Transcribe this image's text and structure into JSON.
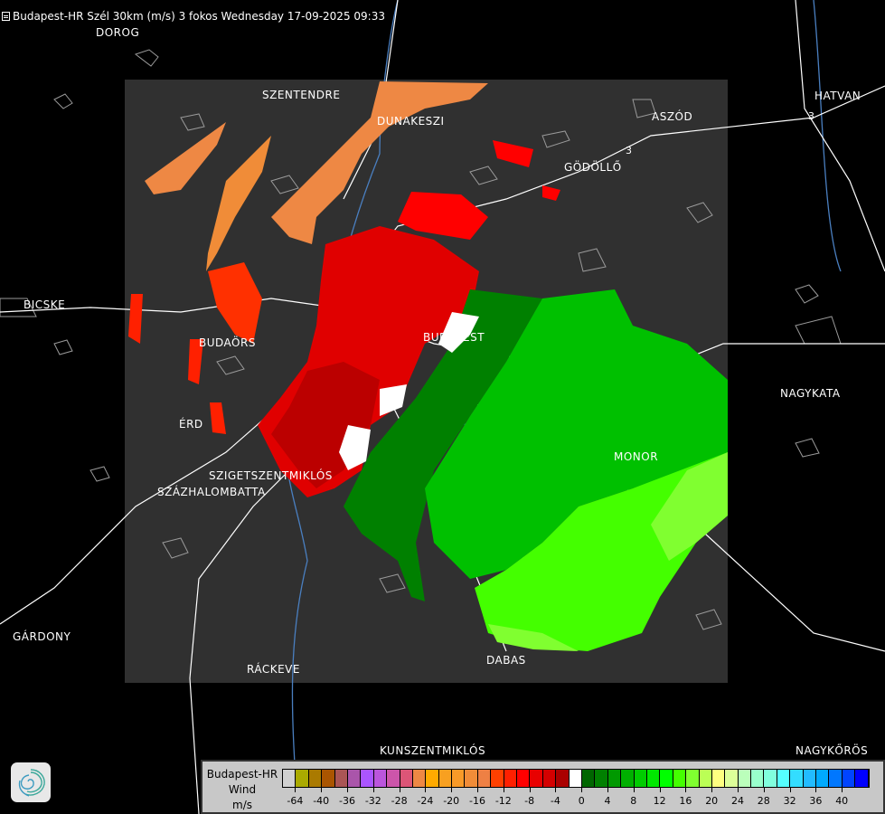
{
  "title": "Budapest-HR Szél 30km (m/s) 3 fokos Wednesday 17-09-2025 09:33",
  "title_icon": "document-icon",
  "cities": [
    {
      "name": "DOROG"
    },
    {
      "name": "SZENTENDRE"
    },
    {
      "name": "DUNAKESZI"
    },
    {
      "name": "GÖDÖLLŐ"
    },
    {
      "name": "ASZÓD"
    },
    {
      "name": "HATVAN"
    },
    {
      "name": "BICSKE"
    },
    {
      "name": "BUDAÖRS"
    },
    {
      "name": "BUDAPEST"
    },
    {
      "name": "NAGYKATA"
    },
    {
      "name": "ÉRD"
    },
    {
      "name": "MONOR"
    },
    {
      "name": "SZIGETSZENTMIKLÓS"
    },
    {
      "name": "SZÁZHALOMBATTA"
    },
    {
      "name": "GÁRDONY"
    },
    {
      "name": "RÁCKEVE"
    },
    {
      "name": "DABAS"
    },
    {
      "name": "KUNSZENTMIKLÓS"
    },
    {
      "name": "NAGYKŐRÖS"
    }
  ],
  "road_numbers": [
    "3",
    "3"
  ],
  "legend": {
    "line1": "Budapest-HR",
    "line2": "Wind",
    "line3": "m/s",
    "colors": [
      "#d0d0d0",
      "#aaaa00",
      "#aa7a00",
      "#aa5500",
      "#aa5555",
      "#aa55aa",
      "#aa55ff",
      "#bb55dd",
      "#cc55aa",
      "#dd5577",
      "#ee8844",
      "#ffaa00",
      "#f8a020",
      "#f89a28",
      "#f08c38",
      "#ee8044",
      "#ff4000",
      "#ff2000",
      "#ff0000",
      "#e80000",
      "#d40000",
      "#aa0000",
      "#ffffff",
      "#006600",
      "#008000",
      "#009900",
      "#00b000",
      "#00cc00",
      "#00e800",
      "#00ff00",
      "#44ff00",
      "#80ff30",
      "#bbff55",
      "#ffff80",
      "#ddff99",
      "#bbffbb",
      "#99ffcc",
      "#80ffdd",
      "#55ffff",
      "#33ddff",
      "#22bbff",
      "#00aaff",
      "#0077ff",
      "#0044ff",
      "#0000ff"
    ],
    "tick_labels": [
      "-64",
      "-40",
      "-36",
      "-32",
      "-28",
      "-24",
      "-20",
      "-16",
      "-12",
      "-8",
      "-4",
      "0",
      "4",
      "8",
      "12",
      "16",
      "20",
      "24",
      "28",
      "32",
      "36",
      "40"
    ]
  },
  "colors": {
    "background": "#000000",
    "radar_area": "#303030",
    "roads": "#ffffff",
    "rivers": "#4a7fc0",
    "settlements": "#9a9a9a"
  }
}
